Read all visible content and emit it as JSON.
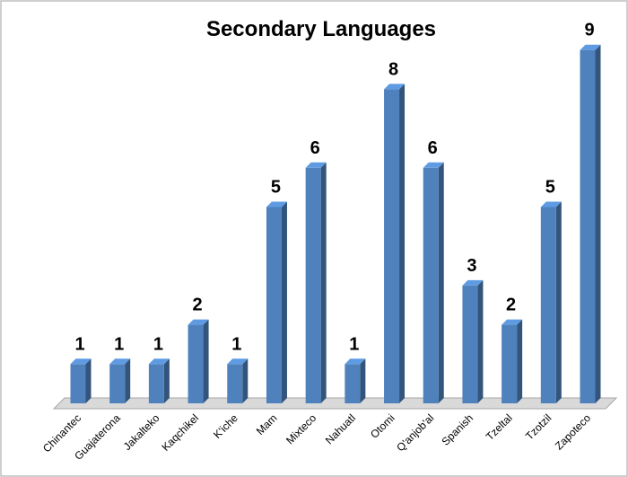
{
  "chart_data": {
    "type": "bar",
    "title": "Secondary Languages",
    "categories": [
      "Chinantec",
      "Guajaterona",
      "Jakalteko",
      "Kaqchikel",
      "K'iche",
      "Mam",
      "Mixteco",
      "Nahuatl",
      "Otomi",
      "Q'anjob'al",
      "Spanish",
      "Tzeltal",
      "Tzotzil",
      "Zapoteco"
    ],
    "values": [
      1,
      1,
      1,
      2,
      1,
      5,
      6,
      1,
      8,
      6,
      3,
      2,
      5,
      9
    ],
    "color": "#4f81bd"
  }
}
